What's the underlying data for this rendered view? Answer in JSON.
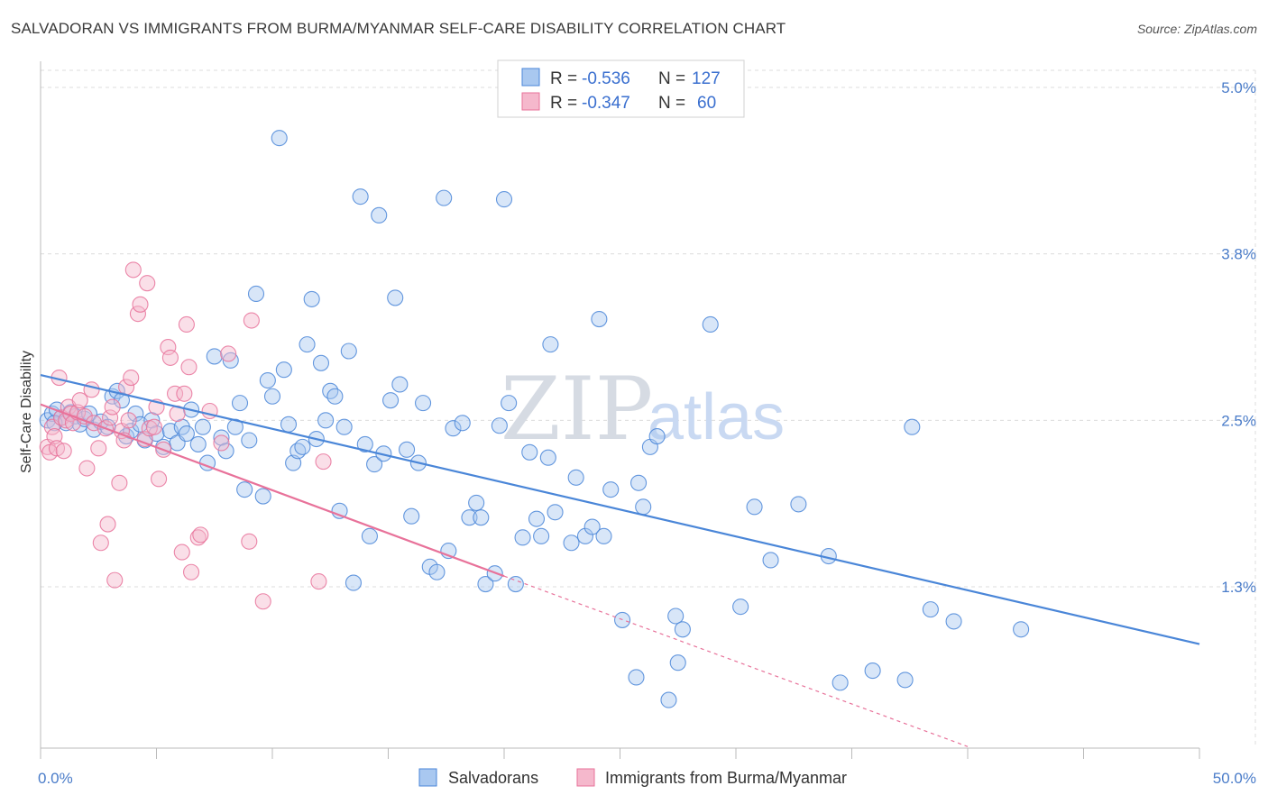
{
  "title": "SALVADORAN VS IMMIGRANTS FROM BURMA/MYANMAR SELF-CARE DISABILITY CORRELATION CHART",
  "source": "Source: ZipAtlas.com",
  "watermark": {
    "zip": "ZIP",
    "atlas": "atlas"
  },
  "colors": {
    "blue": "#4a86d8",
    "blue_fill": "#a9c8f0",
    "pink": "#e8729a",
    "pink_fill": "#f5b8cc",
    "axis_text": "#4a7cc9"
  },
  "legend": {
    "rows": [
      {
        "r_label": "R =",
        "r_value": "-0.536",
        "n_label": "N =",
        "n_value": "127"
      },
      {
        "r_label": "R =",
        "r_value": "-0.347",
        "n_label": "N =",
        "n_value": "60"
      }
    ]
  },
  "chart_data": {
    "type": "scatter",
    "ylabel": "Self-Care Disability",
    "xlabel": "",
    "x_tick_labels": [
      "0.0%",
      "50.0%"
    ],
    "y_tick_labels": [
      "5.0%",
      "3.8%",
      "2.5%",
      "1.3%"
    ],
    "y_ticks": [
      5.0,
      3.75,
      2.5,
      1.25
    ],
    "xlim": [
      0,
      50
    ],
    "ylim": [
      0,
      5.1
    ],
    "grid": true,
    "legend_position": "top-center",
    "series": [
      {
        "name": "Salvadorans",
        "color": "#4a86d8",
        "trend": {
          "x0": 0,
          "y0": 2.84,
          "x1": 50,
          "y1": 0.82
        },
        "points": [
          [
            0.3,
            2.5
          ],
          [
            0.5,
            2.55
          ],
          [
            0.7,
            2.58
          ],
          [
            0.9,
            2.52
          ],
          [
            1.1,
            2.48
          ],
          [
            1.3,
            2.56
          ],
          [
            1.5,
            2.53
          ],
          [
            1.7,
            2.47
          ],
          [
            1.9,
            2.51
          ],
          [
            2.1,
            2.55
          ],
          [
            2.3,
            2.43
          ],
          [
            2.6,
            2.49
          ],
          [
            2.9,
            2.45
          ],
          [
            3.1,
            2.68
          ],
          [
            3.3,
            2.72
          ],
          [
            3.5,
            2.65
          ],
          [
            3.7,
            2.38
          ],
          [
            3.9,
            2.42
          ],
          [
            4.1,
            2.55
          ],
          [
            4.3,
            2.47
          ],
          [
            4.5,
            2.35
          ],
          [
            4.8,
            2.5
          ],
          [
            5.0,
            2.4
          ],
          [
            5.3,
            2.3
          ],
          [
            5.6,
            2.42
          ],
          [
            5.9,
            2.33
          ],
          [
            6.1,
            2.45
          ],
          [
            6.3,
            2.4
          ],
          [
            6.5,
            2.58
          ],
          [
            6.8,
            2.32
          ],
          [
            7.0,
            2.45
          ],
          [
            7.2,
            2.18
          ],
          [
            7.5,
            2.98
          ],
          [
            7.8,
            2.37
          ],
          [
            8.0,
            2.27
          ],
          [
            8.2,
            2.95
          ],
          [
            8.4,
            2.45
          ],
          [
            8.6,
            2.63
          ],
          [
            8.8,
            1.98
          ],
          [
            9.0,
            2.35
          ],
          [
            9.3,
            3.45
          ],
          [
            9.6,
            1.93
          ],
          [
            9.8,
            2.8
          ],
          [
            10.0,
            2.68
          ],
          [
            10.3,
            4.62
          ],
          [
            10.5,
            2.88
          ],
          [
            10.7,
            2.47
          ],
          [
            10.9,
            2.18
          ],
          [
            11.1,
            2.27
          ],
          [
            11.3,
            2.3
          ],
          [
            11.5,
            3.07
          ],
          [
            11.7,
            3.41
          ],
          [
            11.9,
            2.36
          ],
          [
            12.1,
            2.93
          ],
          [
            12.3,
            2.5
          ],
          [
            12.5,
            2.72
          ],
          [
            12.7,
            2.68
          ],
          [
            12.9,
            1.82
          ],
          [
            13.1,
            2.45
          ],
          [
            13.3,
            3.02
          ],
          [
            13.5,
            1.28
          ],
          [
            13.8,
            4.18
          ],
          [
            14.0,
            2.32
          ],
          [
            14.2,
            1.63
          ],
          [
            14.4,
            2.17
          ],
          [
            14.6,
            4.04
          ],
          [
            14.8,
            2.25
          ],
          [
            15.1,
            2.65
          ],
          [
            15.3,
            3.42
          ],
          [
            15.5,
            2.77
          ],
          [
            15.8,
            2.28
          ],
          [
            16.0,
            1.78
          ],
          [
            16.3,
            2.18
          ],
          [
            16.5,
            2.63
          ],
          [
            16.8,
            1.4
          ],
          [
            17.1,
            1.36
          ],
          [
            17.4,
            4.17
          ],
          [
            17.6,
            1.52
          ],
          [
            17.8,
            2.44
          ],
          [
            18.2,
            2.48
          ],
          [
            18.5,
            1.77
          ],
          [
            18.8,
            1.88
          ],
          [
            19.0,
            1.77
          ],
          [
            19.2,
            1.27
          ],
          [
            19.6,
            1.35
          ],
          [
            19.8,
            2.46
          ],
          [
            20.0,
            4.16
          ],
          [
            20.2,
            2.63
          ],
          [
            20.5,
            1.27
          ],
          [
            20.8,
            1.62
          ],
          [
            21.1,
            2.26
          ],
          [
            21.4,
            1.76
          ],
          [
            21.6,
            1.63
          ],
          [
            21.9,
            2.22
          ],
          [
            22.2,
            1.81
          ],
          [
            22.0,
            3.07
          ],
          [
            22.9,
            1.58
          ],
          [
            23.1,
            2.07
          ],
          [
            23.5,
            1.63
          ],
          [
            23.8,
            1.7
          ],
          [
            24.1,
            3.26
          ],
          [
            24.3,
            1.63
          ],
          [
            24.6,
            1.98
          ],
          [
            25.1,
            1.0
          ],
          [
            25.7,
            0.57
          ],
          [
            25.8,
            2.03
          ],
          [
            26.0,
            1.85
          ],
          [
            26.3,
            2.3
          ],
          [
            26.6,
            2.38
          ],
          [
            27.4,
            1.03
          ],
          [
            27.5,
            0.68
          ],
          [
            27.7,
            0.93
          ],
          [
            27.1,
            0.4
          ],
          [
            28.9,
            3.22
          ],
          [
            30.2,
            1.1
          ],
          [
            30.8,
            1.85
          ],
          [
            31.5,
            1.45
          ],
          [
            32.7,
            1.87
          ],
          [
            34.0,
            1.48
          ],
          [
            34.5,
            0.53
          ],
          [
            35.9,
            0.62
          ],
          [
            37.3,
            0.55
          ],
          [
            37.6,
            2.45
          ],
          [
            38.4,
            1.08
          ],
          [
            39.4,
            0.99
          ],
          [
            42.3,
            0.93
          ],
          [
            0.6,
            2.48
          ]
        ]
      },
      {
        "name": "Immigrants from Burma/Myanmar",
        "color": "#e8729a",
        "trend": {
          "x0": 0,
          "y0": 2.62,
          "x1": 20,
          "y1": 1.33,
          "dash_to": {
            "x": 40,
            "y": 0.05
          }
        },
        "points": [
          [
            0.3,
            2.3
          ],
          [
            0.4,
            2.26
          ],
          [
            0.5,
            2.45
          ],
          [
            0.6,
            2.38
          ],
          [
            0.7,
            2.29
          ],
          [
            0.8,
            2.82
          ],
          [
            0.9,
            2.52
          ],
          [
            1.0,
            2.27
          ],
          [
            1.1,
            2.5
          ],
          [
            1.2,
            2.6
          ],
          [
            1.3,
            2.55
          ],
          [
            1.4,
            2.48
          ],
          [
            1.6,
            2.56
          ],
          [
            1.7,
            2.65
          ],
          [
            1.9,
            2.53
          ],
          [
            2.0,
            2.14
          ],
          [
            2.2,
            2.73
          ],
          [
            2.3,
            2.48
          ],
          [
            2.5,
            2.29
          ],
          [
            2.6,
            1.58
          ],
          [
            2.8,
            2.44
          ],
          [
            2.9,
            1.72
          ],
          [
            3.0,
            2.52
          ],
          [
            3.1,
            2.6
          ],
          [
            3.2,
            1.3
          ],
          [
            3.4,
            2.03
          ],
          [
            3.5,
            2.42
          ],
          [
            3.6,
            2.35
          ],
          [
            3.7,
            2.75
          ],
          [
            3.8,
            2.5
          ],
          [
            3.9,
            2.82
          ],
          [
            4.0,
            3.63
          ],
          [
            4.2,
            3.3
          ],
          [
            4.3,
            3.37
          ],
          [
            4.5,
            2.36
          ],
          [
            4.6,
            3.53
          ],
          [
            4.7,
            2.44
          ],
          [
            4.9,
            2.45
          ],
          [
            5.0,
            2.6
          ],
          [
            5.1,
            2.06
          ],
          [
            5.3,
            2.28
          ],
          [
            5.5,
            3.05
          ],
          [
            5.6,
            2.97
          ],
          [
            5.8,
            2.7
          ],
          [
            5.9,
            2.55
          ],
          [
            6.1,
            1.51
          ],
          [
            6.2,
            2.7
          ],
          [
            6.3,
            3.22
          ],
          [
            6.4,
            2.9
          ],
          [
            6.5,
            1.36
          ],
          [
            6.8,
            1.62
          ],
          [
            6.9,
            1.64
          ],
          [
            7.3,
            2.57
          ],
          [
            7.8,
            2.33
          ],
          [
            8.1,
            3.0
          ],
          [
            9.0,
            1.59
          ],
          [
            9.1,
            3.25
          ],
          [
            9.6,
            1.14
          ],
          [
            12.2,
            2.19
          ],
          [
            12.0,
            1.29
          ]
        ]
      }
    ]
  },
  "bottom_legend": [
    "Salvadorans",
    "Immigrants from Burma/Myanmar"
  ]
}
